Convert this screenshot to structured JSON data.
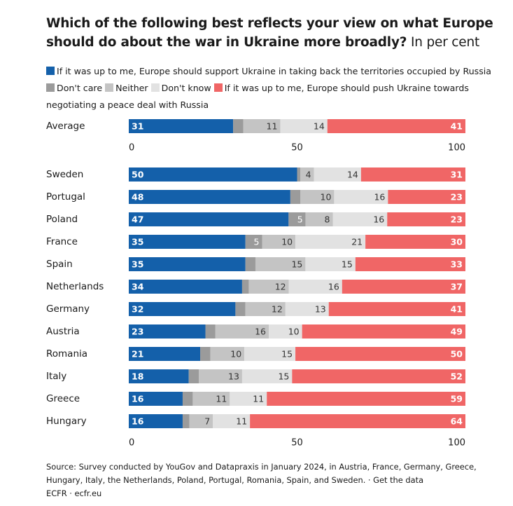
{
  "title": {
    "bold": "Which of the following best reflects your view on what Europe should do about the war in Ukraine more broadly?",
    "unit": "In per cent"
  },
  "legend": [
    {
      "label": "If it was up to me, Europe should support Ukraine in taking back the territories occupied by Russia",
      "color": "#1460aa"
    },
    {
      "label": "Don't care",
      "color": "#9b9b9b"
    },
    {
      "label": "Neither",
      "color": "#c4c4c4"
    },
    {
      "label": "Don't know",
      "color": "#e2e2e2"
    },
    {
      "label": "If it was up to me, Europe should push Ukraine towards negotiating a peace deal with Russia",
      "color": "#f06666"
    }
  ],
  "chart_data": {
    "type": "bar",
    "orientation": "horizontal",
    "stacked": true,
    "xlim": [
      0,
      100
    ],
    "xticks": [
      "0",
      "50",
      "100"
    ],
    "series": [
      {
        "name": "If it was up to me, Europe should support Ukraine in taking back the territories occupied by Russia",
        "color": "#1460aa"
      },
      {
        "name": "Don't care",
        "color": "#9b9b9b"
      },
      {
        "name": "Neither",
        "color": "#c4c4c4"
      },
      {
        "name": "Don't know",
        "color": "#e2e2e2"
      },
      {
        "name": "If it was up to me, Europe should push Ukraine towards negotiating a peace deal with Russia",
        "color": "#f06666"
      }
    ],
    "groups": [
      {
        "rows": [
          {
            "category": "Average",
            "values": [
              31,
              3,
              11,
              14,
              41
            ],
            "labels": [
              "31",
              "",
              "11",
              "14",
              "41"
            ]
          }
        ]
      },
      {
        "rows": [
          {
            "category": "Sweden",
            "values": [
              50,
              1,
              4,
              14,
              31
            ],
            "labels": [
              "50",
              "",
              "4",
              "14",
              "31"
            ]
          },
          {
            "category": "Portugal",
            "values": [
              48,
              3,
              10,
              16,
              23
            ],
            "labels": [
              "48",
              "",
              "10",
              "16",
              "23"
            ]
          },
          {
            "category": "Poland",
            "values": [
              47,
              5,
              8,
              16,
              23
            ],
            "labels": [
              "47",
              "5",
              "8",
              "16",
              "23"
            ]
          },
          {
            "category": "France",
            "values": [
              35,
              5,
              10,
              21,
              30
            ],
            "labels": [
              "35",
              "5",
              "10",
              "21",
              "30"
            ]
          },
          {
            "category": "Spain",
            "values": [
              35,
              3,
              15,
              15,
              33
            ],
            "labels": [
              "35",
              "",
              "15",
              "15",
              "33"
            ]
          },
          {
            "category": "Netherlands",
            "values": [
              34,
              2,
              12,
              16,
              37
            ],
            "labels": [
              "34",
              "",
              "12",
              "16",
              "37"
            ]
          },
          {
            "category": "Germany",
            "values": [
              32,
              3,
              12,
              13,
              41
            ],
            "labels": [
              "32",
              "",
              "12",
              "13",
              "41"
            ]
          },
          {
            "category": "Austria",
            "values": [
              23,
              3,
              16,
              10,
              49
            ],
            "labels": [
              "23",
              "",
              "16",
              "10",
              "49"
            ]
          },
          {
            "category": "Romania",
            "values": [
              21,
              3,
              10,
              15,
              50
            ],
            "labels": [
              "21",
              "",
              "10",
              "15",
              "50"
            ]
          },
          {
            "category": "Italy",
            "values": [
              18,
              3,
              13,
              15,
              52
            ],
            "labels": [
              "18",
              "",
              "13",
              "15",
              "52"
            ]
          },
          {
            "category": "Greece",
            "values": [
              16,
              3,
              11,
              11,
              59
            ],
            "labels": [
              "16",
              "",
              "11",
              "11",
              "59"
            ]
          },
          {
            "category": "Hungary",
            "values": [
              16,
              2,
              7,
              11,
              64
            ],
            "labels": [
              "16",
              "",
              "7",
              "11",
              "64"
            ]
          }
        ]
      }
    ]
  },
  "footer": {
    "source": "Source: Survey conducted by YouGov and Datapraxis in January 2024, in Austria, France, Germany, Greece, Hungary, Italy, the Netherlands, Poland, Portugal, Romania, Spain, and Sweden. · Get the data",
    "credit": "ECFR · ecfr.eu"
  }
}
